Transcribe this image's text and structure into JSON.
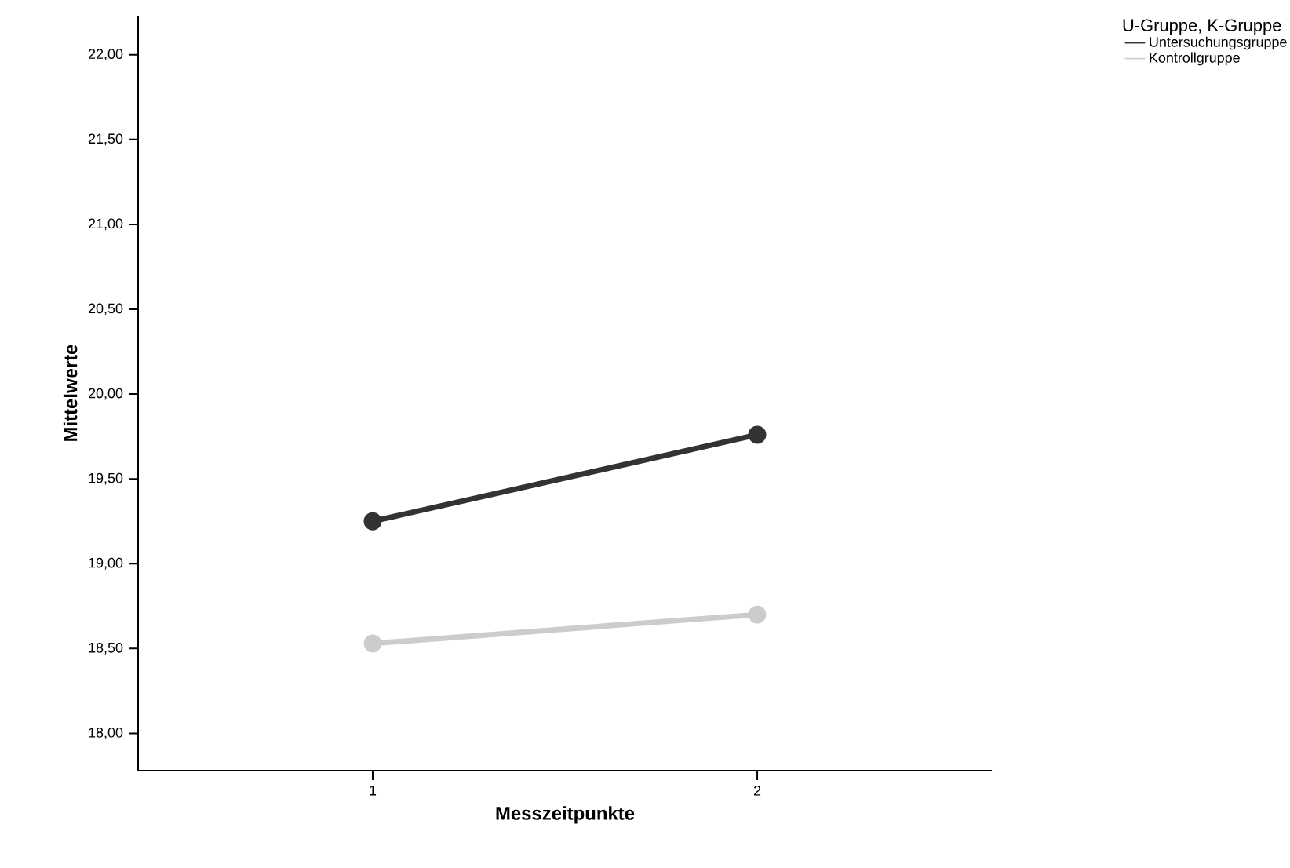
{
  "chart_data": {
    "type": "line",
    "xlabel": "Messzeitpunkte",
    "ylabel": "Mittelwerte",
    "legend_title": "U-Gruppe, K-Gruppe",
    "categories": [
      "1",
      "2"
    ],
    "series": [
      {
        "name": "Untersuchungsgruppe",
        "color": "#333333",
        "values": [
          19.25,
          19.76
        ]
      },
      {
        "name": "Kontrollgruppe",
        "color": "#cccccc",
        "values": [
          18.53,
          18.7
        ]
      }
    ],
    "ylim": [
      17.78,
      22.23
    ],
    "yticks": [
      {
        "value": 18,
        "label": "18,00"
      },
      {
        "value": 18.5,
        "label": "18,50"
      },
      {
        "value": 19,
        "label": "19,00"
      },
      {
        "value": 19.5,
        "label": "19,50"
      },
      {
        "value": 20,
        "label": "20,00"
      },
      {
        "value": 20.5,
        "label": "20,50"
      },
      {
        "value": 21,
        "label": "21,00"
      },
      {
        "value": 21.5,
        "label": "21,50"
      },
      {
        "value": 22,
        "label": "22,00"
      }
    ],
    "grid": false,
    "legend": "top right",
    "marker": "circle",
    "line_style": "solid"
  }
}
